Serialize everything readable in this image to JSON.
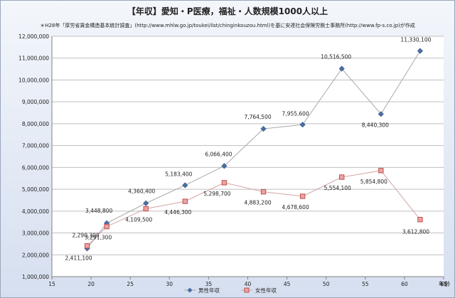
{
  "chart_data": {
    "type": "scatter",
    "title": "【年収】愛知・P医療，福祉・人数規模1000人以上",
    "subtitle": "＊H28年「厚労省賃金構造基本統計調査」(http://www.mhlw.go.jp/toukei/list/chinginkouzou.html)を基に安達社会保険労務士事務所(http://www.fp-s.co.jp)が作成",
    "xlabel": "年齢",
    "ylabel": "",
    "xlim": [
      15,
      65
    ],
    "ylim": [
      1000000,
      12000000
    ],
    "xticks": [
      "15",
      "20",
      "25",
      "30",
      "35",
      "40",
      "45",
      "50",
      "55",
      "60",
      "65"
    ],
    "yticks": [
      "1,000,000",
      "2,000,000",
      "3,000,000",
      "4,000,000",
      "5,000,000",
      "6,000,000",
      "7,000,000",
      "8,000,000",
      "9,000,000",
      "10,000,000",
      "11,000,000",
      "12,000,000"
    ],
    "grid": true,
    "legend_position": "bottom",
    "series": [
      {
        "name": "男性年収",
        "color": "#4a6fa5",
        "marker": "diamond",
        "x": [
          19.5,
          22,
          27,
          32,
          37,
          42,
          47,
          52,
          57,
          62
        ],
        "y": [
          2290300,
          3448800,
          4360400,
          5183400,
          6066400,
          7764500,
          7955600,
          10516500,
          8440300,
          11330100
        ],
        "labels": [
          "2,290,300",
          "3,448,800",
          "4,360,400",
          "5,183,400",
          "6,066,400",
          "7,764,500",
          "7,955,600",
          "10,516,500",
          "8,440,300",
          "11,330,100"
        ]
      },
      {
        "name": "女性年収",
        "color": "#c0504d",
        "marker": "square",
        "x": [
          19.5,
          22,
          27,
          32,
          37,
          42,
          47,
          52,
          57,
          62
        ],
        "y": [
          2411100,
          3291300,
          4109500,
          4446300,
          5298700,
          4883200,
          4678600,
          5554100,
          5854800,
          3612800
        ],
        "labels": [
          "2,411,100",
          "3,291,300",
          "4,109,500",
          "4,446,300",
          "5,298,700",
          "4,883,200",
          "4,678,600",
          "5,554,100",
          "5,854,800",
          "3,612,800"
        ]
      }
    ]
  }
}
